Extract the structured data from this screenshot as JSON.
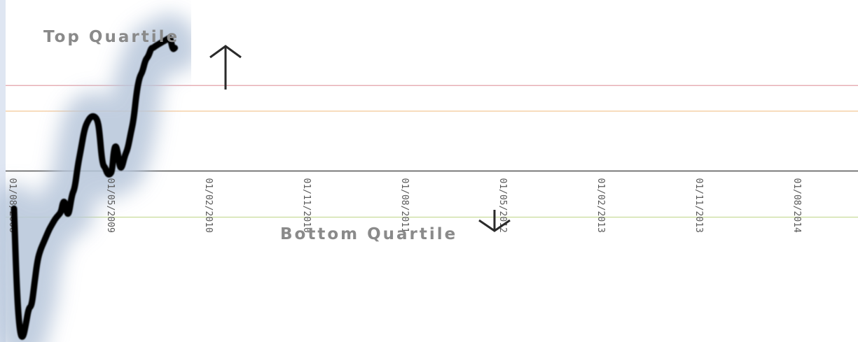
{
  "chart_data": {
    "type": "line",
    "title": "",
    "xlabel": "",
    "ylabel": "",
    "grid": false,
    "ylim": [
      -100,
      100
    ],
    "x_tick_labels": [
      "01/08/2008",
      "01/05/2009",
      "01/02/2010",
      "01/11/2010",
      "01/08/2011",
      "01/05/2012",
      "01/02/2013",
      "01/11/2013",
      "01/08/2014"
    ],
    "reference_lines": [
      {
        "name": "upper-red-line",
        "value": 50,
        "color": "#e2a0a8"
      },
      {
        "name": "upper-orange-line",
        "value": 35,
        "color": "#f2c08a"
      },
      {
        "name": "center-axis-line",
        "value": 0,
        "color": "#555555"
      },
      {
        "name": "lower-green-line",
        "value": -27,
        "color": "#c8dc9a"
      }
    ],
    "annotations": [
      {
        "name": "top-quartile",
        "text": "Top Quartile",
        "direction": "up"
      },
      {
        "name": "bottom-quartile",
        "text": "Bottom Quartile",
        "direction": "down"
      }
    ],
    "series": [
      {
        "color": "#000000",
        "halo_color": "#b7c6da",
        "points": [
          [
            0.0,
            -22
          ],
          [
            0.03,
            -72
          ],
          [
            0.06,
            -95
          ],
          [
            0.09,
            -98
          ],
          [
            0.12,
            -90
          ],
          [
            0.15,
            -80
          ],
          [
            0.18,
            -79
          ],
          [
            0.21,
            -65
          ],
          [
            0.24,
            -52
          ],
          [
            0.27,
            -46
          ],
          [
            0.3,
            -42
          ],
          [
            0.33,
            -38
          ],
          [
            0.36,
            -34
          ],
          [
            0.39,
            -31
          ],
          [
            0.42,
            -28
          ],
          [
            0.45,
            -26
          ],
          [
            0.48,
            -24
          ],
          [
            0.5,
            -18
          ],
          [
            0.52,
            -18
          ],
          [
            0.54,
            -25
          ],
          [
            0.56,
            -25
          ],
          [
            0.59,
            -14
          ],
          [
            0.62,
            -10
          ],
          [
            0.65,
            3
          ],
          [
            0.68,
            12
          ],
          [
            0.72,
            25
          ],
          [
            0.76,
            30
          ],
          [
            0.79,
            32
          ],
          [
            0.82,
            32
          ],
          [
            0.85,
            30
          ],
          [
            0.87,
            24
          ],
          [
            0.9,
            4
          ],
          [
            0.93,
            2
          ],
          [
            0.955,
            -2
          ],
          [
            0.98,
            -2
          ],
          [
            1.0,
            0
          ],
          [
            1.02,
            13
          ],
          [
            1.04,
            15
          ],
          [
            1.06,
            10
          ],
          [
            1.08,
            2
          ],
          [
            1.1,
            2
          ],
          [
            1.13,
            9
          ],
          [
            1.16,
            13
          ],
          [
            1.19,
            22
          ],
          [
            1.22,
            30
          ],
          [
            1.25,
            46
          ],
          [
            1.28,
            55
          ],
          [
            1.31,
            58
          ],
          [
            1.34,
            65
          ],
          [
            1.37,
            67
          ],
          [
            1.4,
            72
          ],
          [
            1.42,
            72
          ],
          [
            1.44,
            73
          ],
          [
            1.47,
            74
          ],
          [
            1.5,
            75
          ],
          [
            1.53,
            76
          ],
          [
            1.56,
            77
          ],
          [
            1.59,
            78
          ],
          [
            1.6,
            76
          ],
          [
            1.62,
            71
          ],
          [
            1.64,
            72
          ]
        ]
      }
    ]
  }
}
